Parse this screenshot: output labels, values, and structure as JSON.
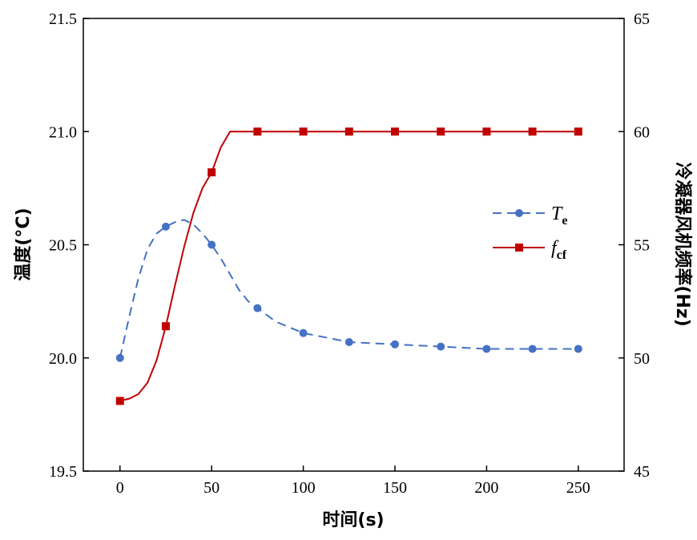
{
  "chart_data": {
    "type": "line",
    "xlabel": "时间(s)",
    "ylabel_left": "温度(°C)",
    "ylabel_right": "冷凝器风机频率(Hz)",
    "xlim": [
      -20,
      275
    ],
    "xticks": [
      0,
      50,
      100,
      150,
      200,
      250
    ],
    "ylim_left": [
      19.5,
      21.5
    ],
    "yticks_left": [
      "19.5",
      "20.0",
      "20.5",
      "21.0",
      "21.5"
    ],
    "ylim_right": [
      45,
      65
    ],
    "yticks_right": [
      "45",
      "50",
      "55",
      "60",
      "65"
    ],
    "legend_position": "right-middle",
    "series": [
      {
        "name": "T",
        "name_sub": "e",
        "axis": "left",
        "color": "#4472C4",
        "line_style": "dashed",
        "marker": "circle",
        "markers": [
          [
            0,
            20.0
          ],
          [
            25,
            20.58
          ],
          [
            50,
            20.5
          ],
          [
            75,
            20.22
          ],
          [
            100,
            20.11
          ],
          [
            125,
            20.07
          ],
          [
            150,
            20.06
          ],
          [
            175,
            20.05
          ],
          [
            200,
            20.04
          ],
          [
            225,
            20.04
          ],
          [
            250,
            20.04
          ]
        ],
        "curve": [
          [
            0,
            20.0
          ],
          [
            5,
            20.18
          ],
          [
            10,
            20.35
          ],
          [
            15,
            20.48
          ],
          [
            20,
            20.55
          ],
          [
            25,
            20.58
          ],
          [
            30,
            20.6
          ],
          [
            35,
            20.61
          ],
          [
            40,
            20.59
          ],
          [
            45,
            20.55
          ],
          [
            50,
            20.5
          ],
          [
            55,
            20.44
          ],
          [
            60,
            20.37
          ],
          [
            65,
            20.3
          ],
          [
            70,
            20.25
          ],
          [
            75,
            20.22
          ],
          [
            85,
            20.16
          ],
          [
            100,
            20.11
          ],
          [
            125,
            20.07
          ],
          [
            150,
            20.06
          ],
          [
            175,
            20.05
          ],
          [
            200,
            20.04
          ],
          [
            225,
            20.04
          ],
          [
            250,
            20.04
          ]
        ]
      },
      {
        "name": "f",
        "name_sub": "cf",
        "axis": "right",
        "color": "#C00000",
        "line_style": "solid",
        "marker": "square",
        "markers": [
          [
            0,
            48.1
          ],
          [
            25,
            51.4
          ],
          [
            50,
            58.2
          ],
          [
            75,
            60
          ],
          [
            100,
            60
          ],
          [
            125,
            60
          ],
          [
            150,
            60
          ],
          [
            175,
            60
          ],
          [
            200,
            60
          ],
          [
            225,
            60
          ],
          [
            250,
            60
          ]
        ],
        "curve": [
          [
            0,
            48.1
          ],
          [
            5,
            48.2
          ],
          [
            10,
            48.4
          ],
          [
            15,
            48.9
          ],
          [
            20,
            49.9
          ],
          [
            25,
            51.4
          ],
          [
            30,
            53.2
          ],
          [
            35,
            54.9
          ],
          [
            40,
            56.4
          ],
          [
            45,
            57.5
          ],
          [
            50,
            58.2
          ],
          [
            55,
            59.3
          ],
          [
            60,
            60
          ],
          [
            75,
            60
          ],
          [
            100,
            60
          ],
          [
            125,
            60
          ],
          [
            150,
            60
          ],
          [
            175,
            60
          ],
          [
            200,
            60
          ],
          [
            225,
            60
          ],
          [
            250,
            60
          ]
        ]
      }
    ]
  }
}
